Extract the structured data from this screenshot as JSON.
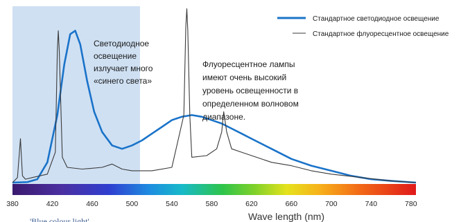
{
  "chart_data": {
    "type": "line",
    "xlabel": "Wave length (nm)",
    "xlim": [
      380,
      785
    ],
    "ylim": [
      0,
      100
    ],
    "x_ticks": [
      "380",
      "420",
      "460",
      "500",
      "540",
      "580",
      "620",
      "660",
      "700",
      "740",
      "780"
    ],
    "highlight_band": {
      "x_range": [
        380,
        508
      ],
      "label": "'Blue colour light'",
      "color": "#cfe0f3"
    },
    "series": [
      {
        "name": "Стандартное светодиодное освещение",
        "color": "#1a73c9",
        "x": [
          380,
          395,
          405,
          415,
          425,
          432,
          438,
          443,
          448,
          455,
          462,
          470,
          480,
          490,
          500,
          510,
          520,
          530,
          540,
          550,
          560,
          570,
          580,
          590,
          600,
          610,
          620,
          640,
          660,
          680,
          700,
          720,
          740,
          760,
          785
        ],
        "y": [
          0,
          0.3,
          2,
          12,
          40,
          70,
          88,
          90,
          82,
          60,
          42,
          30,
          22,
          20,
          22,
          25,
          29,
          33,
          37,
          39,
          40,
          39,
          37,
          35,
          32,
          29,
          26,
          20,
          14,
          10,
          7,
          4,
          2,
          1,
          0
        ]
      },
      {
        "name": "Стандартное флуоресцентное освещение",
        "color": "#3a3a3a",
        "x": [
          380,
          385,
          388,
          390,
          393,
          400,
          415,
          423,
          425,
          426,
          427,
          430,
          435,
          450,
          470,
          480,
          490,
          500,
          520,
          540,
          552,
          554,
          555,
          556,
          558,
          560,
          575,
          585,
          590,
          592,
          595,
          600,
          610,
          620,
          640,
          660,
          680,
          700,
          730,
          760,
          785
        ],
        "y": [
          0,
          3,
          26,
          4,
          2,
          3,
          5,
          18,
          78,
          90,
          78,
          15,
          9,
          8,
          9,
          11,
          8,
          7,
          7,
          9,
          40,
          92,
          103,
          90,
          40,
          15,
          16,
          20,
          30,
          42,
          30,
          20,
          18,
          16,
          12,
          10,
          7,
          5,
          3,
          1,
          0
        ]
      }
    ],
    "annotations": [
      {
        "lines": [
          "Светодиодное",
          "освещение",
          "излучает много",
          "«синего света»"
        ]
      },
      {
        "lines": [
          "Флуоресцентное лампы",
          "имеют  очень высокий",
          "уровень освещенности в",
          "определенном волновом",
          "диапазоне."
        ]
      }
    ],
    "legend_position": "top-right",
    "grid": false
  }
}
